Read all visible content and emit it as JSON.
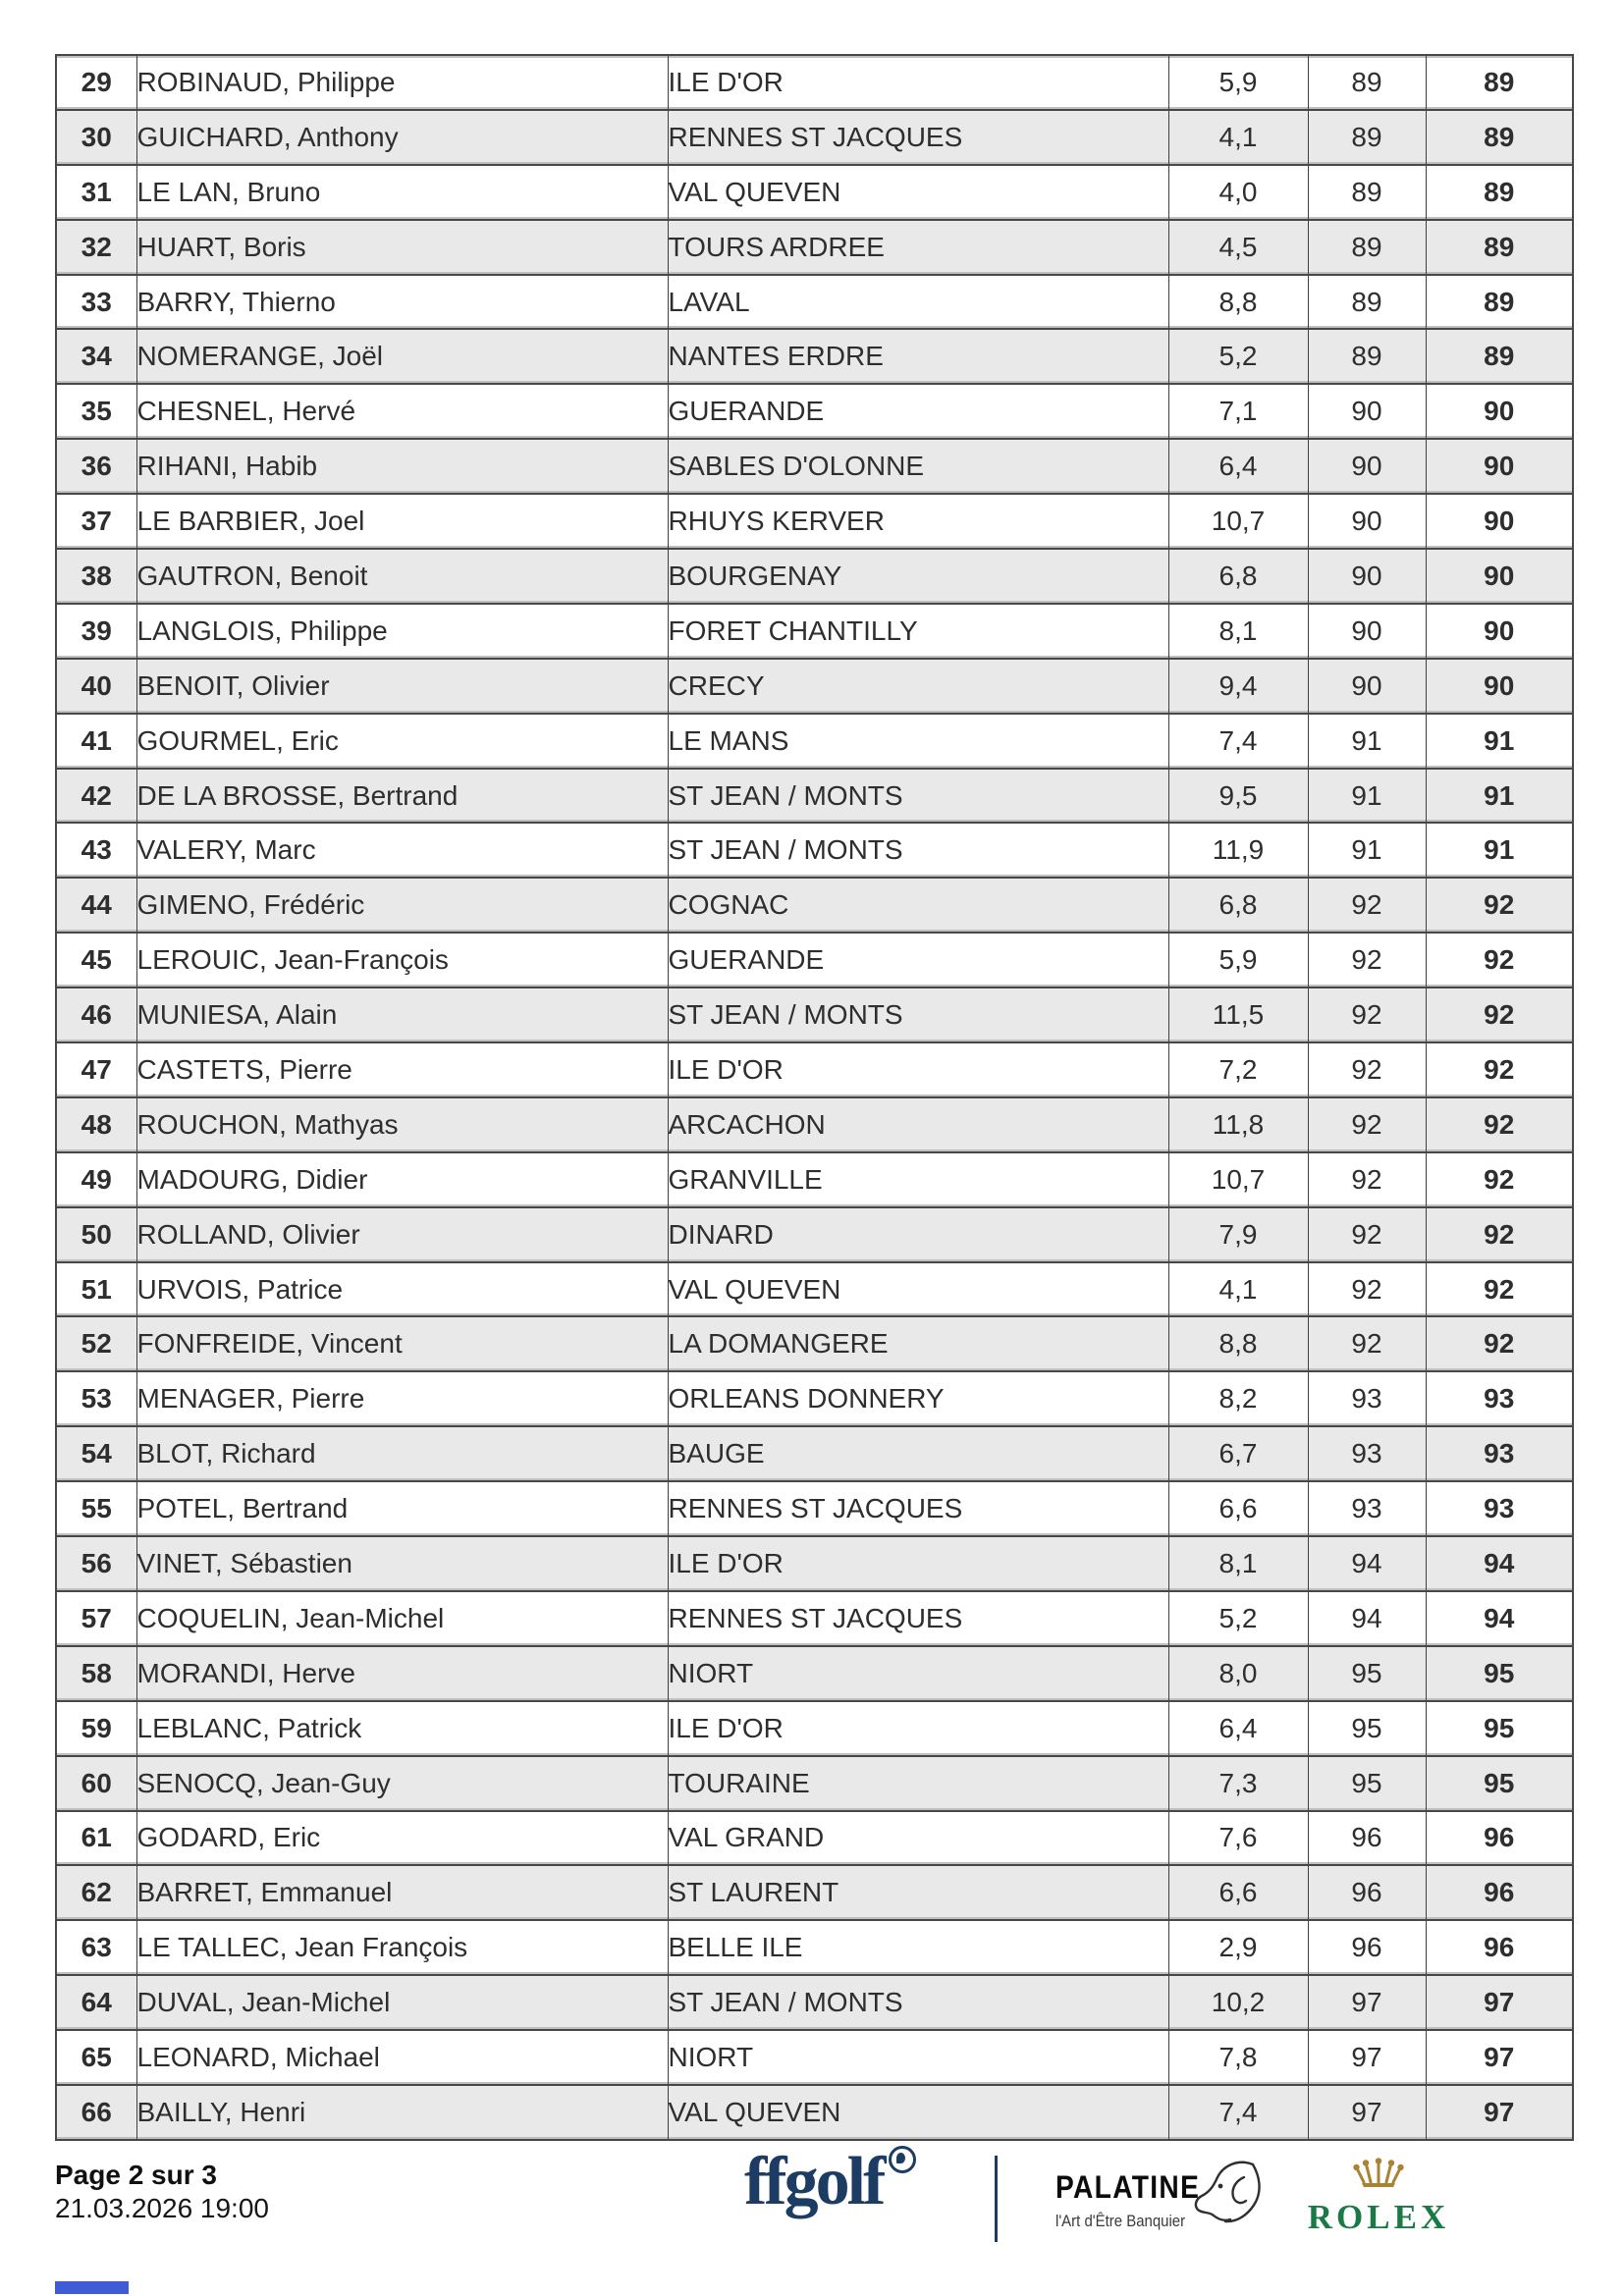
{
  "colors": {
    "row_alt": "#e9e9ea",
    "grid_dark": "#474747",
    "grid_light": "#c0c0c0",
    "text": "#2e2e2e",
    "ffgolf_navy": "#1c3c63",
    "rolex_green": "#1a7a45",
    "rolex_gold": "#a98333",
    "footer_mark_blue": "#3d5cd6"
  },
  "table": {
    "columns": [
      "rank",
      "name",
      "club",
      "handicap",
      "score",
      "total"
    ],
    "rows": [
      {
        "rank": "29",
        "name": "ROBINAUD, Philippe",
        "club": "ILE D'OR",
        "handicap": "5,9",
        "score": "89",
        "total": "89"
      },
      {
        "rank": "30",
        "name": "GUICHARD, Anthony",
        "club": "RENNES ST JACQUES",
        "handicap": "4,1",
        "score": "89",
        "total": "89"
      },
      {
        "rank": "31",
        "name": "LE LAN, Bruno",
        "club": "VAL QUEVEN",
        "handicap": "4,0",
        "score": "89",
        "total": "89"
      },
      {
        "rank": "32",
        "name": "HUART, Boris",
        "club": "TOURS ARDREE",
        "handicap": "4,5",
        "score": "89",
        "total": "89"
      },
      {
        "rank": "33",
        "name": "BARRY, Thierno",
        "club": "LAVAL",
        "handicap": "8,8",
        "score": "89",
        "total": "89"
      },
      {
        "rank": "34",
        "name": "NOMERANGE, Joël",
        "club": "NANTES ERDRE",
        "handicap": "5,2",
        "score": "89",
        "total": "89"
      },
      {
        "rank": "35",
        "name": "CHESNEL, Hervé",
        "club": "GUERANDE",
        "handicap": "7,1",
        "score": "90",
        "total": "90"
      },
      {
        "rank": "36",
        "name": "RIHANI, Habib",
        "club": "SABLES D'OLONNE",
        "handicap": "6,4",
        "score": "90",
        "total": "90"
      },
      {
        "rank": "37",
        "name": "LE BARBIER, Joel",
        "club": "RHUYS KERVER",
        "handicap": "10,7",
        "score": "90",
        "total": "90"
      },
      {
        "rank": "38",
        "name": "GAUTRON, Benoit",
        "club": "BOURGENAY",
        "handicap": "6,8",
        "score": "90",
        "total": "90"
      },
      {
        "rank": "39",
        "name": "LANGLOIS, Philippe",
        "club": "FORET CHANTILLY",
        "handicap": "8,1",
        "score": "90",
        "total": "90"
      },
      {
        "rank": "40",
        "name": "BENOIT, Olivier",
        "club": "CRECY",
        "handicap": "9,4",
        "score": "90",
        "total": "90"
      },
      {
        "rank": "41",
        "name": "GOURMEL, Eric",
        "club": "LE MANS",
        "handicap": "7,4",
        "score": "91",
        "total": "91"
      },
      {
        "rank": "42",
        "name": "DE LA BROSSE, Bertrand",
        "club": "ST JEAN / MONTS",
        "handicap": "9,5",
        "score": "91",
        "total": "91"
      },
      {
        "rank": "43",
        "name": "VALERY, Marc",
        "club": "ST JEAN / MONTS",
        "handicap": "11,9",
        "score": "91",
        "total": "91"
      },
      {
        "rank": "44",
        "name": "GIMENO, Frédéric",
        "club": "COGNAC",
        "handicap": "6,8",
        "score": "92",
        "total": "92"
      },
      {
        "rank": "45",
        "name": "LEROUIC, Jean-François",
        "club": "GUERANDE",
        "handicap": "5,9",
        "score": "92",
        "total": "92"
      },
      {
        "rank": "46",
        "name": "MUNIESA, Alain",
        "club": "ST JEAN / MONTS",
        "handicap": "11,5",
        "score": "92",
        "total": "92"
      },
      {
        "rank": "47",
        "name": "CASTETS, Pierre",
        "club": "ILE D'OR",
        "handicap": "7,2",
        "score": "92",
        "total": "92"
      },
      {
        "rank": "48",
        "name": "ROUCHON, Mathyas",
        "club": "ARCACHON",
        "handicap": "11,8",
        "score": "92",
        "total": "92"
      },
      {
        "rank": "49",
        "name": "MADOURG, Didier",
        "club": "GRANVILLE",
        "handicap": "10,7",
        "score": "92",
        "total": "92"
      },
      {
        "rank": "50",
        "name": "ROLLAND, Olivier",
        "club": "DINARD",
        "handicap": "7,9",
        "score": "92",
        "total": "92"
      },
      {
        "rank": "51",
        "name": "URVOIS, Patrice",
        "club": "VAL QUEVEN",
        "handicap": "4,1",
        "score": "92",
        "total": "92"
      },
      {
        "rank": "52",
        "name": "FONFREIDE, Vincent",
        "club": "LA DOMANGERE",
        "handicap": "8,8",
        "score": "92",
        "total": "92"
      },
      {
        "rank": "53",
        "name": "MENAGER, Pierre",
        "club": "ORLEANS DONNERY",
        "handicap": "8,2",
        "score": "93",
        "total": "93"
      },
      {
        "rank": "54",
        "name": "BLOT, Richard",
        "club": "BAUGE",
        "handicap": "6,7",
        "score": "93",
        "total": "93"
      },
      {
        "rank": "55",
        "name": "POTEL, Bertrand",
        "club": "RENNES ST JACQUES",
        "handicap": "6,6",
        "score": "93",
        "total": "93"
      },
      {
        "rank": "56",
        "name": "VINET, Sébastien",
        "club": "ILE D'OR",
        "handicap": "8,1",
        "score": "94",
        "total": "94"
      },
      {
        "rank": "57",
        "name": "COQUELIN, Jean-Michel",
        "club": "RENNES ST JACQUES",
        "handicap": "5,2",
        "score": "94",
        "total": "94"
      },
      {
        "rank": "58",
        "name": "MORANDI, Herve",
        "club": "NIORT",
        "handicap": "8,0",
        "score": "95",
        "total": "95"
      },
      {
        "rank": "59",
        "name": "LEBLANC, Patrick",
        "club": "ILE D'OR",
        "handicap": "6,4",
        "score": "95",
        "total": "95"
      },
      {
        "rank": "60",
        "name": "SENOCQ, Jean-Guy",
        "club": "TOURAINE",
        "handicap": "7,3",
        "score": "95",
        "total": "95"
      },
      {
        "rank": "61",
        "name": "GODARD, Eric",
        "club": "VAL GRAND",
        "handicap": "7,6",
        "score": "96",
        "total": "96"
      },
      {
        "rank": "62",
        "name": "BARRET, Emmanuel",
        "club": "ST LAURENT",
        "handicap": "6,6",
        "score": "96",
        "total": "96"
      },
      {
        "rank": "63",
        "name": "LE TALLEC, Jean François",
        "club": "BELLE ILE",
        "handicap": "2,9",
        "score": "96",
        "total": "96"
      },
      {
        "rank": "64",
        "name": "DUVAL, Jean-Michel",
        "club": "ST JEAN / MONTS",
        "handicap": "10,2",
        "score": "97",
        "total": "97"
      },
      {
        "rank": "65",
        "name": "LEONARD, Michael",
        "club": "NIORT",
        "handicap": "7,8",
        "score": "97",
        "total": "97"
      },
      {
        "rank": "66",
        "name": "BAILLY, Henri",
        "club": "VAL QUEVEN",
        "handicap": "7,4",
        "score": "97",
        "total": "97"
      }
    ]
  },
  "footer": {
    "page_label": "Page 2 sur 3",
    "timestamp": "21.03.2026 19:00",
    "ffgolf_wordmark": "ffgolf",
    "palatine_wordmark": "PALATINE",
    "palatine_tagline": "l'Art d'Être Banquier",
    "rolex_wordmark": "ROLEX"
  }
}
